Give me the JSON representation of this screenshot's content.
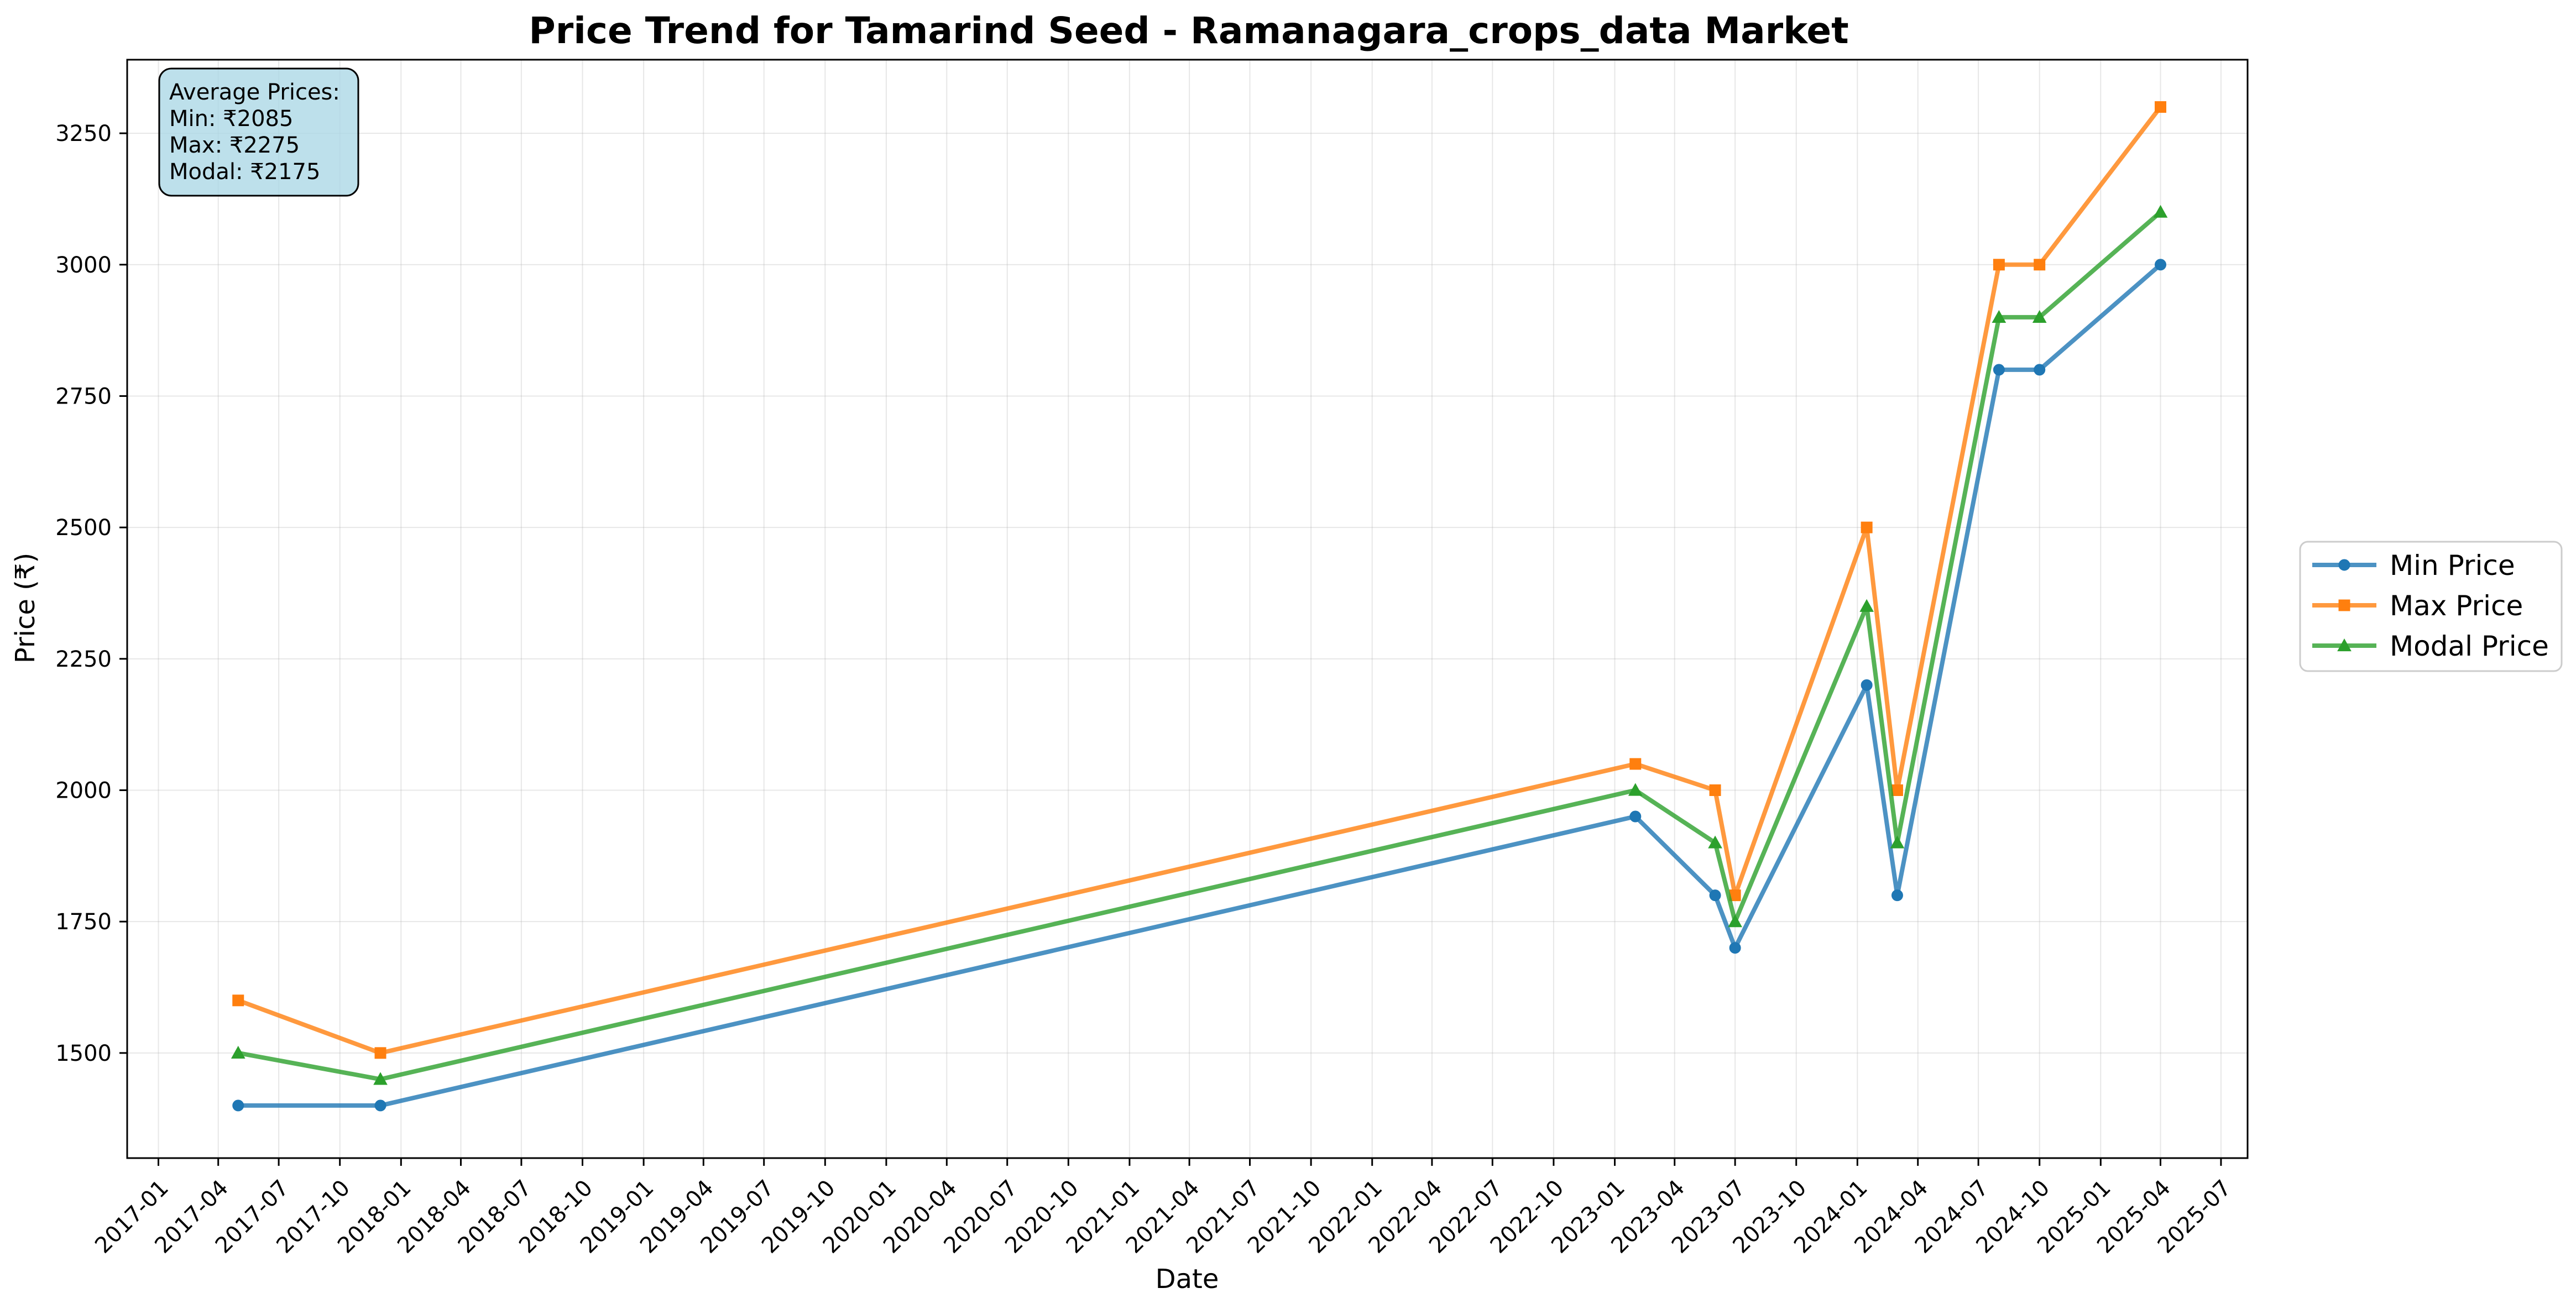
{
  "chart_data": {
    "type": "line",
    "title": "Price Trend for Tamarind Seed - Ramanagara_crops_data Market",
    "xlabel": "Date",
    "ylabel": "Price (₹)",
    "x_ticks": [
      "2017-01",
      "2017-04",
      "2017-07",
      "2017-10",
      "2018-01",
      "2018-04",
      "2018-07",
      "2018-10",
      "2019-01",
      "2019-04",
      "2019-07",
      "2019-10",
      "2020-01",
      "2020-04",
      "2020-07",
      "2020-10",
      "2021-01",
      "2021-04",
      "2021-07",
      "2021-10",
      "2022-01",
      "2022-04",
      "2022-07",
      "2022-10",
      "2023-01",
      "2023-04",
      "2023-07",
      "2023-10",
      "2024-01",
      "2024-04",
      "2024-07",
      "2024-10",
      "2025-01",
      "2025-04",
      "2025-07"
    ],
    "y_ticks": [
      1500,
      1750,
      2000,
      2250,
      2500,
      2750,
      3000,
      3250
    ],
    "xlim": [
      "2016-11-15",
      "2025-08-10"
    ],
    "ylim": [
      1300,
      3390
    ],
    "grid": true,
    "x": [
      "2017-05-01",
      "2017-12-01",
      "2023-02-01",
      "2023-06-01",
      "2023-07-01",
      "2024-01-15",
      "2024-03-01",
      "2024-08-01",
      "2024-10-01",
      "2025-04-01"
    ],
    "series": [
      {
        "name": "Min Price",
        "color": "#1f77b4",
        "marker": "circle",
        "values": [
          1400,
          1400,
          1950,
          1800,
          1700,
          2200,
          1800,
          2800,
          2800,
          3000
        ]
      },
      {
        "name": "Max Price",
        "color": "#ff7f0e",
        "marker": "square",
        "values": [
          1600,
          1500,
          2050,
          2000,
          1800,
          2500,
          2000,
          3000,
          3000,
          3300
        ]
      },
      {
        "name": "Modal Price",
        "color": "#2ca02c",
        "marker": "triangle",
        "values": [
          1500,
          1450,
          2000,
          1900,
          1750,
          2350,
          1900,
          2900,
          2900,
          3100
        ]
      }
    ],
    "legend_position": "outside-right",
    "annotation": {
      "lines": [
        "Average Prices:",
        "Min: ₹2085",
        "Max: ₹2275",
        "Modal: ₹2175"
      ],
      "background": "#add8e6"
    }
  }
}
